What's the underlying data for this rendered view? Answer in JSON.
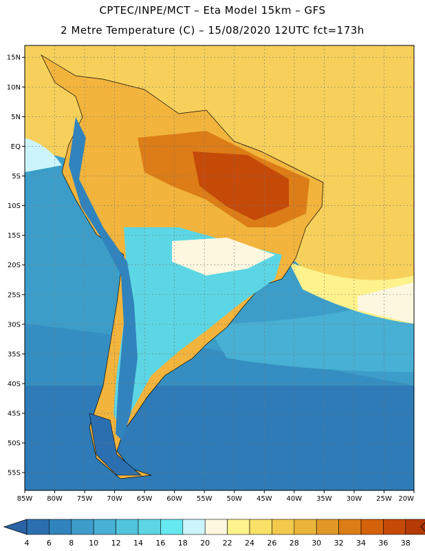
{
  "header": {
    "line1": "CPTEC/INPE/MCT –  Eta Model 15km – GFS",
    "line2": "2 Metre Temperature (C) – 15/08/2020 12UTC fct=173h"
  },
  "map": {
    "lon_range": [
      -85,
      -20
    ],
    "lat_range": [
      -58,
      17
    ],
    "lat_labels": [
      "15N",
      "10N",
      "5N",
      "EQ",
      "5S",
      "10S",
      "15S",
      "20S",
      "25S",
      "30S",
      "35S",
      "40S",
      "45S",
      "50S",
      "55S"
    ],
    "lat_values": [
      15,
      10,
      5,
      0,
      -5,
      -10,
      -15,
      -20,
      -25,
      -30,
      -35,
      -40,
      -45,
      -50,
      -55
    ],
    "lon_labels": [
      "85W",
      "80W",
      "75W",
      "70W",
      "65W",
      "60W",
      "55W",
      "50W",
      "45W",
      "40W",
      "35W",
      "30W",
      "25W",
      "20W"
    ],
    "lon_values": [
      -85,
      -80,
      -75,
      -70,
      -65,
      -60,
      -55,
      -50,
      -45,
      -40,
      -35,
      -30,
      -25,
      -20
    ],
    "ocean_color": "#3c9ec8",
    "land_color": "#f2b43c"
  },
  "colorbar": {
    "labels": [
      "4",
      "6",
      "8",
      "10",
      "12",
      "14",
      "16",
      "18",
      "20",
      "22",
      "24",
      "26",
      "28",
      "30",
      "32",
      "34",
      "36",
      "38"
    ],
    "colors": [
      "#2b6fb0",
      "#3183bd",
      "#3d9cc9",
      "#47b0d4",
      "#52c4dd",
      "#5cd6e4",
      "#66e8ef",
      "#ccf5fb",
      "#fdf7e0",
      "#fdf28c",
      "#f9e067",
      "#f2c94c",
      "#eab33a",
      "#e19826",
      "#dc7d17",
      "#d4620a",
      "#c54a08",
      "#b53a05"
    ],
    "low_color": "#2a63a5",
    "high_color": "#ab3006"
  }
}
